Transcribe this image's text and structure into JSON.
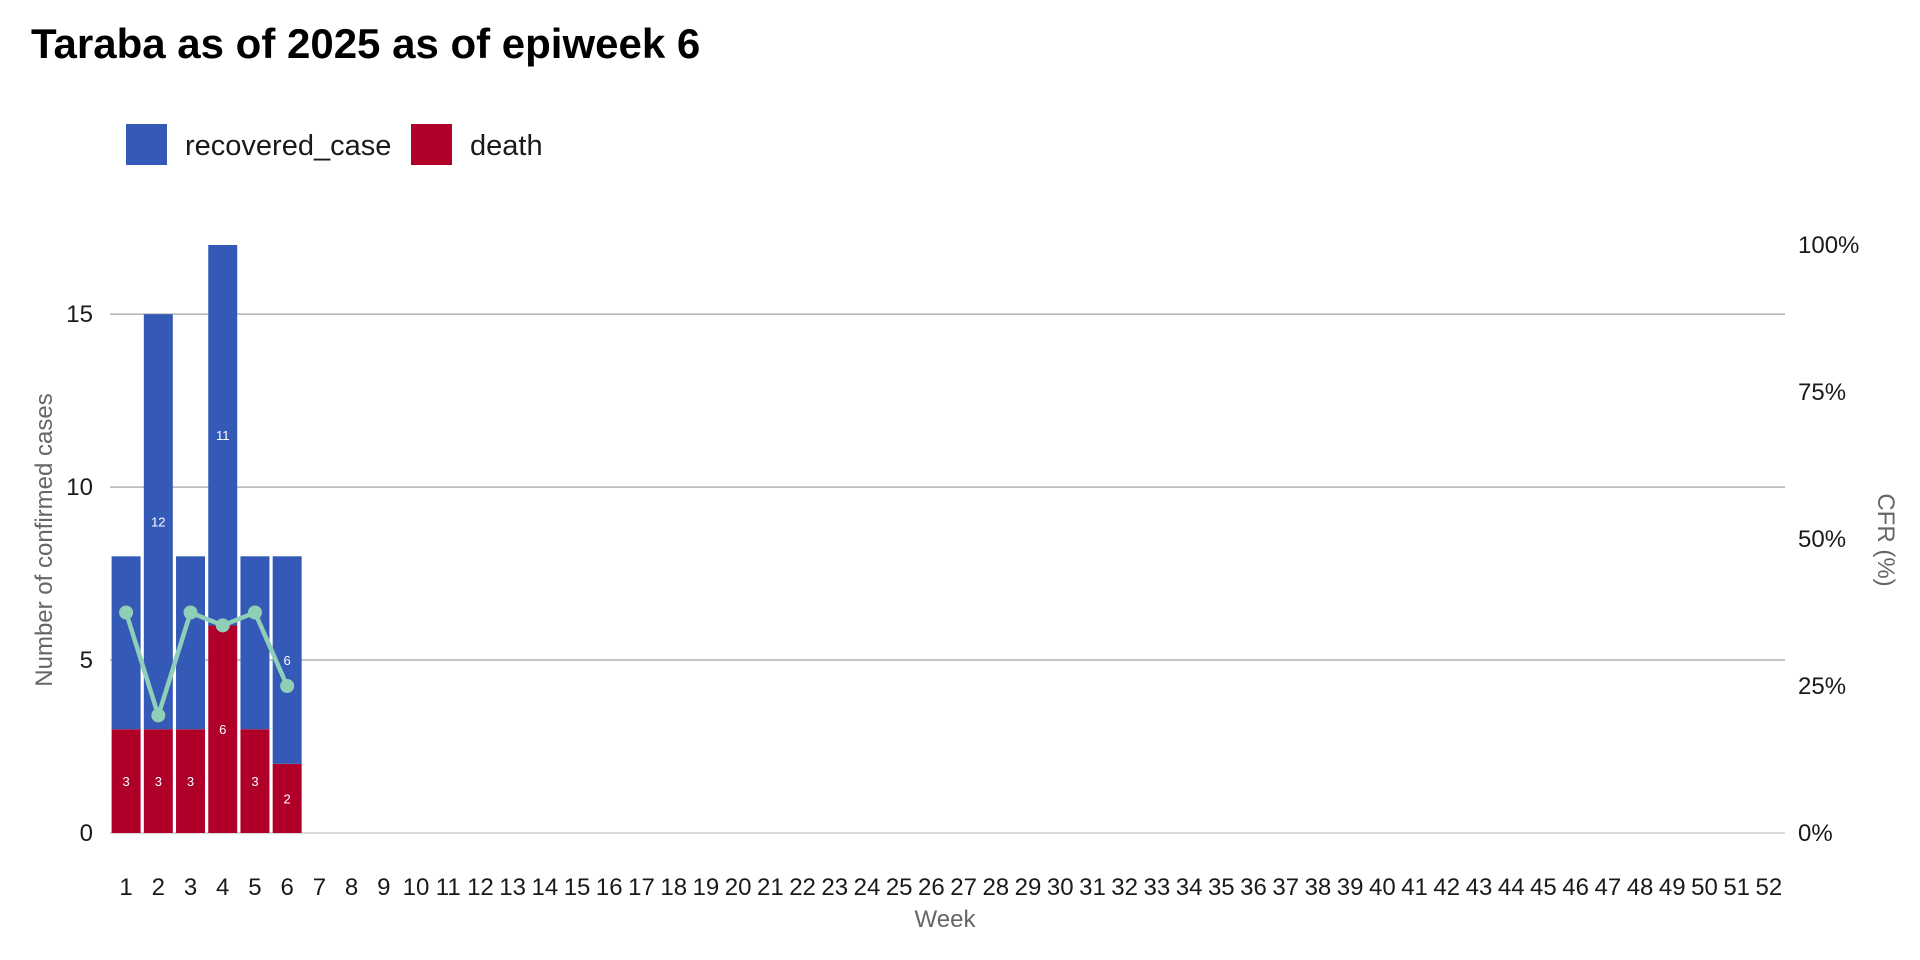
{
  "chart_data": {
    "type": "bar",
    "title": "Taraba as of 2025 as of epiweek 6",
    "xlabel": "Week",
    "ylabel": "Number of confirmed cases",
    "y2label": "CFR (%)",
    "ylim": [
      0,
      17
    ],
    "yticks": [
      "0",
      "5",
      "10",
      "15"
    ],
    "y2lim": [
      0,
      100
    ],
    "y2ticks": [
      "0%",
      "25%",
      "50%",
      "75%",
      "100%"
    ],
    "grid": true,
    "legend_position": "top-left",
    "categories": [
      "1",
      "2",
      "3",
      "4",
      "5",
      "6",
      "7",
      "8",
      "9",
      "10",
      "11",
      "12",
      "13",
      "14",
      "15",
      "16",
      "17",
      "18",
      "19",
      "20",
      "21",
      "22",
      "23",
      "24",
      "25",
      "26",
      "27",
      "28",
      "29",
      "30",
      "31",
      "32",
      "33",
      "34",
      "35",
      "36",
      "37",
      "38",
      "39",
      "40",
      "41",
      "42",
      "43",
      "44",
      "45",
      "46",
      "47",
      "48",
      "49",
      "50",
      "51",
      "52"
    ],
    "series": [
      {
        "name": "recovered_case",
        "color": "#3559b7",
        "values": [
          5,
          12,
          5,
          11,
          5,
          6,
          0,
          0,
          0,
          0,
          0,
          0,
          0,
          0,
          0,
          0,
          0,
          0,
          0,
          0,
          0,
          0,
          0,
          0,
          0,
          0,
          0,
          0,
          0,
          0,
          0,
          0,
          0,
          0,
          0,
          0,
          0,
          0,
          0,
          0,
          0,
          0,
          0,
          0,
          0,
          0,
          0,
          0,
          0,
          0,
          0,
          0
        ],
        "labels": [
          "",
          "12",
          "",
          "11",
          "",
          "6"
        ]
      },
      {
        "name": "death",
        "color": "#b0002a",
        "values": [
          3,
          3,
          3,
          6,
          3,
          2,
          0,
          0,
          0,
          0,
          0,
          0,
          0,
          0,
          0,
          0,
          0,
          0,
          0,
          0,
          0,
          0,
          0,
          0,
          0,
          0,
          0,
          0,
          0,
          0,
          0,
          0,
          0,
          0,
          0,
          0,
          0,
          0,
          0,
          0,
          0,
          0,
          0,
          0,
          0,
          0,
          0,
          0,
          0,
          0,
          0,
          0
        ],
        "labels": [
          "3",
          "3",
          "3",
          "6",
          "3",
          "2"
        ]
      }
    ],
    "cfr_line": {
      "color": "#8fcfb8",
      "values": [
        37.5,
        20.0,
        37.5,
        35.3,
        37.5,
        25.0
      ]
    }
  }
}
